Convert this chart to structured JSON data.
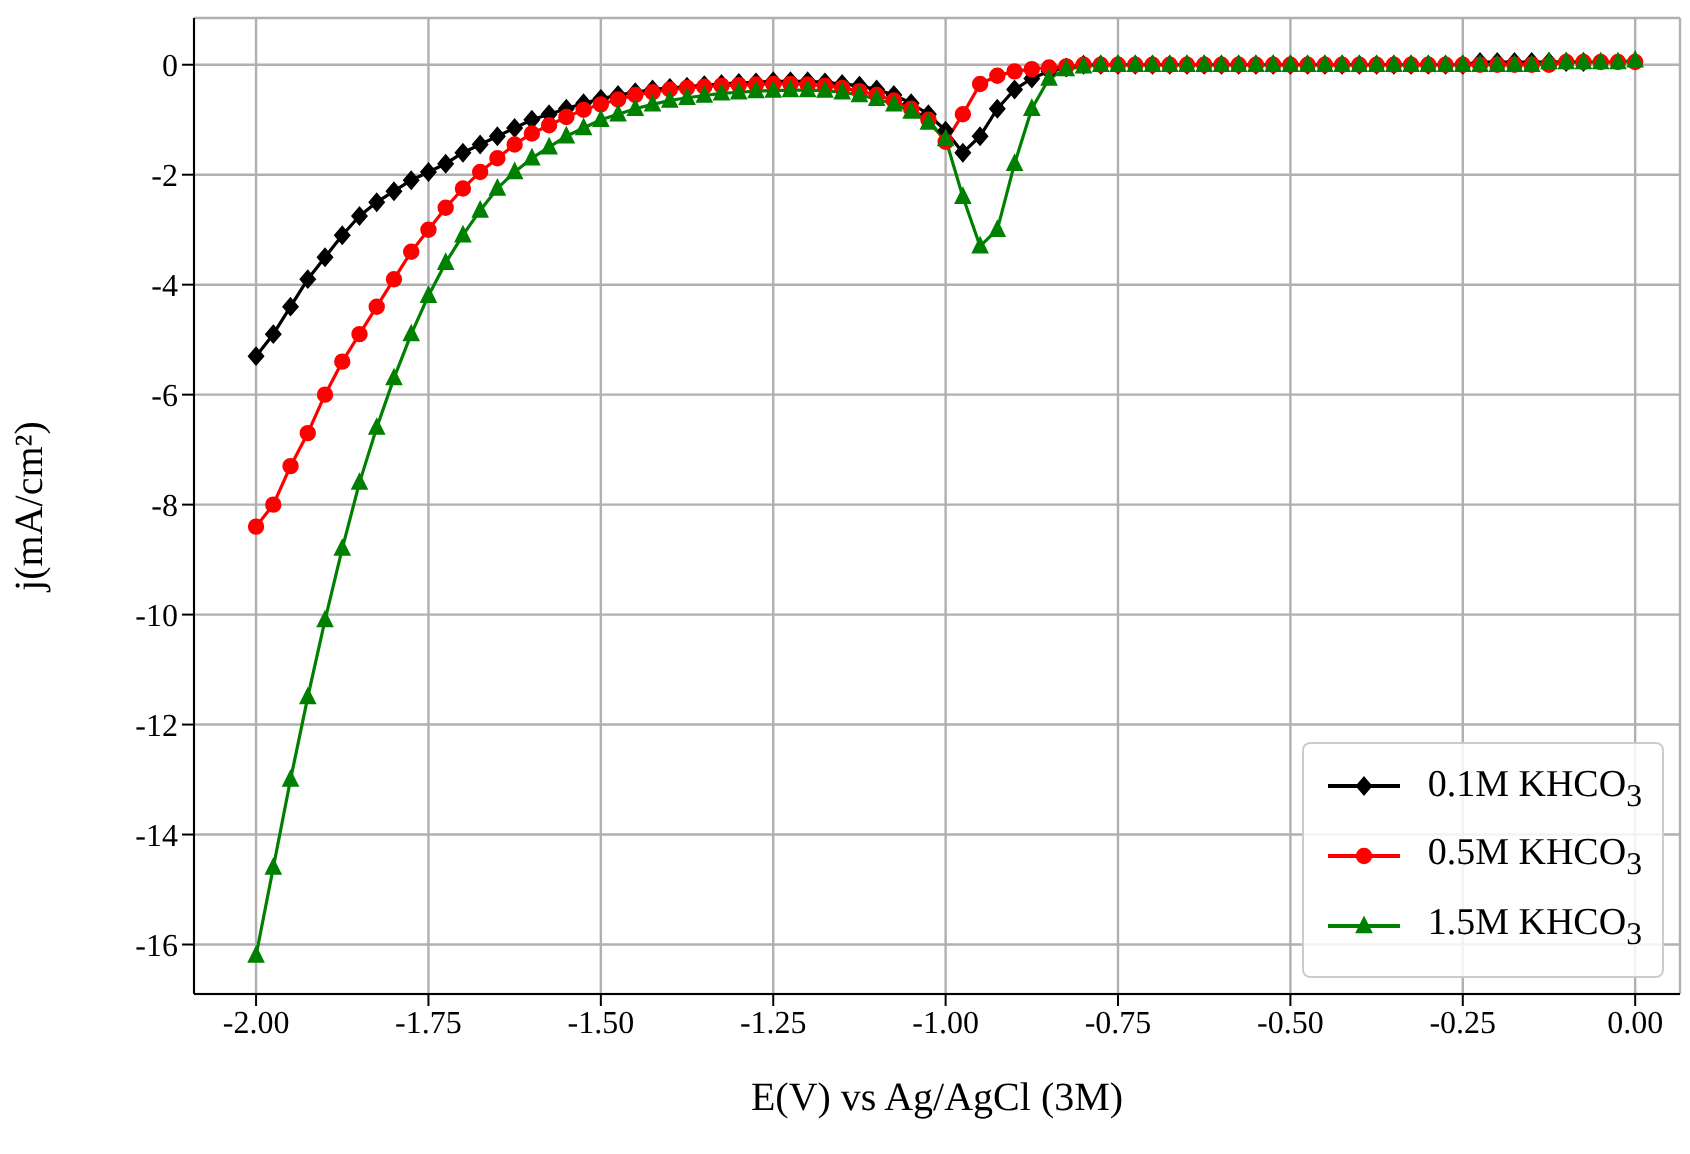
{
  "chart_data": {
    "type": "line",
    "xlabel": "E(V) vs Ag/AgCl (3M)",
    "ylabel": "j(mA/cm²)",
    "x": [
      -2,
      -1.975,
      -1.95,
      -1.925,
      -1.9,
      -1.875,
      -1.85,
      -1.825,
      -1.8,
      -1.775,
      -1.75,
      -1.725,
      -1.7,
      -1.675,
      -1.65,
      -1.625,
      -1.6,
      -1.575,
      -1.55,
      -1.525,
      -1.5,
      -1.475,
      -1.45,
      -1.425,
      -1.4,
      -1.375,
      -1.35,
      -1.325,
      -1.3,
      -1.275,
      -1.25,
      -1.225,
      -1.2,
      -1.175,
      -1.15,
      -1.125,
      -1.1,
      -1.075,
      -1.05,
      -1.025,
      -1,
      -0.975,
      -0.95,
      -0.925,
      -0.9,
      -0.875,
      -0.85,
      -0.825,
      -0.8,
      -0.775,
      -0.75,
      -0.725,
      -0.7,
      -0.675,
      -0.65,
      -0.625,
      -0.6,
      -0.575,
      -0.55,
      -0.525,
      -0.5,
      -0.475,
      -0.45,
      -0.425,
      -0.4,
      -0.375,
      -0.35,
      -0.325,
      -0.3,
      -0.275,
      -0.25,
      -0.225,
      -0.2,
      -0.175,
      -0.15,
      -0.125,
      -0.1,
      -0.075,
      -0.05,
      -0.025,
      0
    ],
    "series": [
      {
        "name": "0.1M KHCO$_{3}$",
        "color": "#000000",
        "marker": "diamond",
        "values": [
          -5.3,
          -4.9,
          -4.4,
          -3.9,
          -3.5,
          -3.1,
          -2.75,
          -2.5,
          -2.3,
          -2.1,
          -1.95,
          -1.8,
          -1.6,
          -1.45,
          -1.3,
          -1.15,
          -1.0,
          -0.9,
          -0.8,
          -0.7,
          -0.62,
          -0.55,
          -0.5,
          -0.45,
          -0.42,
          -0.4,
          -0.37,
          -0.35,
          -0.33,
          -0.32,
          -0.3,
          -0.3,
          -0.3,
          -0.32,
          -0.35,
          -0.38,
          -0.45,
          -0.55,
          -0.7,
          -0.9,
          -1.2,
          -1.6,
          -1.3,
          -0.8,
          -0.45,
          -0.25,
          -0.12,
          -0.05,
          0,
          0,
          0,
          0,
          0,
          0,
          0,
          0,
          0,
          0,
          0,
          0,
          0,
          0,
          0,
          0,
          0,
          0,
          0,
          0,
          0,
          0,
          0,
          0.05,
          0.05,
          0.05,
          0.05,
          0.05,
          0.05,
          0.05,
          null,
          null,
          null
        ]
      },
      {
        "name": "0.5M KHCO$_{3}$",
        "color": "#ff0000",
        "marker": "circle",
        "values": [
          -8.4,
          -8.0,
          -7.3,
          -6.7,
          -6.0,
          -5.4,
          -4.9,
          -4.4,
          -3.9,
          -3.4,
          -3.0,
          -2.6,
          -2.25,
          -1.95,
          -1.7,
          -1.45,
          -1.25,
          -1.1,
          -0.95,
          -0.82,
          -0.72,
          -0.63,
          -0.55,
          -0.5,
          -0.45,
          -0.42,
          -0.4,
          -0.38,
          -0.37,
          -0.36,
          -0.35,
          -0.35,
          -0.36,
          -0.38,
          -0.42,
          -0.48,
          -0.55,
          -0.65,
          -0.8,
          -1.0,
          -1.4,
          -0.9,
          -0.35,
          -0.2,
          -0.12,
          -0.08,
          -0.05,
          -0.03,
          0,
          0,
          0,
          0,
          0,
          0,
          0,
          0,
          0,
          0,
          0,
          0,
          0,
          0,
          0,
          0,
          0,
          0,
          0,
          0,
          0,
          0,
          0,
          0,
          0,
          0,
          0,
          0,
          0.05,
          0.05,
          0.05,
          0.05,
          0.05
        ]
      },
      {
        "name": "1.5M KHCO$_{3}$",
        "color": "#008000",
        "marker": "triangle",
        "values": [
          -16.2,
          -14.6,
          -13.0,
          -11.5,
          -10.1,
          -8.8,
          -7.6,
          -6.6,
          -5.7,
          -4.9,
          -4.2,
          -3.6,
          -3.1,
          -2.65,
          -2.25,
          -1.95,
          -1.7,
          -1.5,
          -1.3,
          -1.15,
          -1.0,
          -0.9,
          -0.8,
          -0.72,
          -0.65,
          -0.6,
          -0.56,
          -0.52,
          -0.5,
          -0.48,
          -0.47,
          -0.46,
          -0.46,
          -0.47,
          -0.5,
          -0.55,
          -0.62,
          -0.72,
          -0.85,
          -1.05,
          -1.35,
          -2.4,
          -3.3,
          -3.0,
          -1.8,
          -0.8,
          -0.25,
          -0.08,
          -0.03,
          0,
          0,
          0,
          0,
          0,
          0,
          0,
          0,
          0,
          0,
          0,
          0,
          0,
          0,
          0,
          0,
          0,
          0,
          0,
          0,
          0,
          0,
          0,
          0,
          0,
          0,
          0.05,
          0.05,
          0.05,
          0.05,
          0.05,
          0.08
        ]
      }
    ],
    "xlim": [
      -2.09,
      0.065
    ],
    "xticks": [
      {
        "value": -2,
        "label": "-2.00"
      },
      {
        "value": -1.75,
        "label": "-1.75"
      },
      {
        "value": -1.5,
        "label": "-1.50"
      },
      {
        "value": -1.25,
        "label": "-1.25"
      },
      {
        "value": -1,
        "label": "-1.00"
      },
      {
        "value": -0.75,
        "label": "-0.75"
      },
      {
        "value": -0.5,
        "label": "-0.50"
      },
      {
        "value": -0.25,
        "label": "-0.25"
      },
      {
        "value": 0,
        "label": "0.00"
      }
    ],
    "ylim": [
      -16.9,
      0.85
    ],
    "yticks": [
      -16,
      -14,
      -12,
      -10,
      -8,
      -6,
      -4,
      -2,
      0
    ],
    "grid": true,
    "legend": "bottom right",
    "line_style": "solid"
  }
}
